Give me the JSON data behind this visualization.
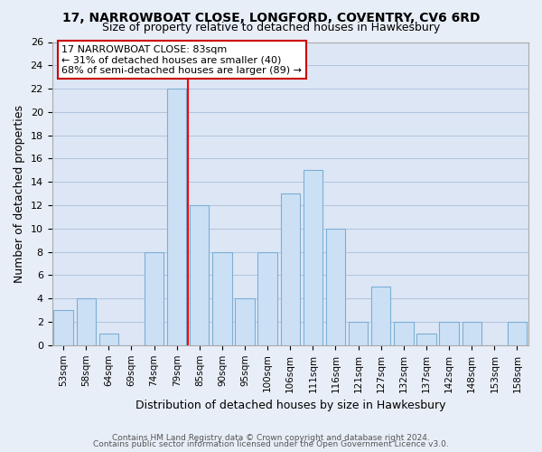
{
  "title1": "17, NARROWBOAT CLOSE, LONGFORD, COVENTRY, CV6 6RD",
  "title2": "Size of property relative to detached houses in Hawkesbury",
  "xlabel": "Distribution of detached houses by size in Hawkesbury",
  "ylabel": "Number of detached properties",
  "footer1": "Contains HM Land Registry data © Crown copyright and database right 2024.",
  "footer2": "Contains public sector information licensed under the Open Government Licence v3.0.",
  "bins": [
    "53sqm",
    "58sqm",
    "64sqm",
    "69sqm",
    "74sqm",
    "79sqm",
    "85sqm",
    "90sqm",
    "95sqm",
    "100sqm",
    "106sqm",
    "111sqm",
    "116sqm",
    "121sqm",
    "127sqm",
    "132sqm",
    "137sqm",
    "142sqm",
    "148sqm",
    "153sqm",
    "158sqm"
  ],
  "values": [
    3,
    4,
    1,
    0,
    8,
    22,
    12,
    8,
    4,
    8,
    13,
    15,
    10,
    2,
    5,
    2,
    1,
    2,
    2,
    0,
    2
  ],
  "bar_color": "#cce0f5",
  "bar_edge_color": "#7bafd4",
  "vline_x_index": 5.5,
  "vline_color": "red",
  "annotation_title": "17 NARROWBOAT CLOSE: 83sqm",
  "annotation_line1": "← 31% of detached houses are smaller (40)",
  "annotation_line2": "68% of semi-detached houses are larger (89) →",
  "annotation_box_color": "white",
  "annotation_box_edge": "#cc0000",
  "ylim": [
    0,
    26
  ],
  "yticks": [
    0,
    2,
    4,
    6,
    8,
    10,
    12,
    14,
    16,
    18,
    20,
    22,
    24,
    26
  ],
  "background_color": "#e8eef7",
  "plot_bg_color": "#dce6f5",
  "grid_color": "#b0c4de",
  "title_fontsize": 10,
  "subtitle_fontsize": 9,
  "ylabel_fontsize": 9,
  "xlabel_fontsize": 9,
  "footer_fontsize": 6.5,
  "tick_fontsize": 8,
  "xtick_fontsize": 7.5
}
